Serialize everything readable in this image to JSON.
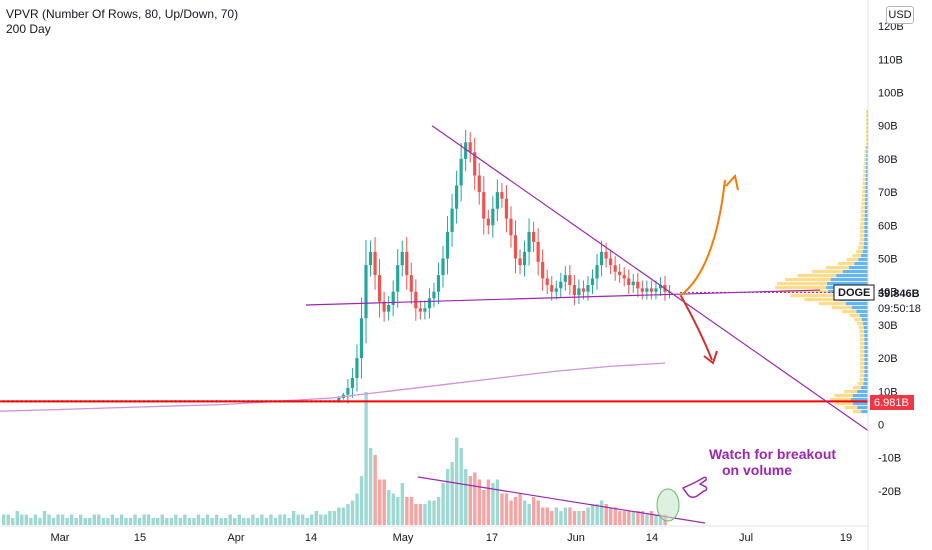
{
  "legend": {
    "indicator": "VPVR (Number Of Rows, 80, Up/Down, 70)",
    "ma": "200 Day"
  },
  "currency_button": "USD",
  "price_tag": {
    "symbol": "DOGE",
    "value": "39.846B",
    "countdown": "09:50:18",
    "color": "#131722"
  },
  "level_tag": {
    "value": "6.981B",
    "color": "#f23645"
  },
  "annotation": {
    "line1": "Watch for breakout",
    "line2": "on volume",
    "color": "#9c27b0"
  },
  "colors": {
    "up": "#26a69a",
    "down": "#ef5350",
    "vol_up": "#9ed8d2",
    "vol_down": "#f5a3a3",
    "ma": "#ce93d8",
    "trend": "#9c27b0",
    "support": "#ff0000",
    "bull_arrow": "#f57c00",
    "bear_arrow": "#d32f2f",
    "vp_up": "#2196f3",
    "vp_down": "#fbc02d"
  },
  "chart_data": {
    "type": "candlestick",
    "yaxis": {
      "ticks": [
        "120B",
        "110B",
        "100B",
        "90B",
        "80B",
        "70B",
        "60B",
        "50B",
        "40B",
        "30B",
        "20B",
        "10B",
        "0",
        "-10B",
        "-20B"
      ],
      "values": [
        120,
        110,
        100,
        90,
        80,
        70,
        60,
        50,
        40,
        30,
        20,
        10,
        0,
        -10,
        -20
      ]
    },
    "xaxis": {
      "ticks": [
        "Mar",
        "15",
        "Apr",
        "14",
        "May",
        "17",
        "Jun",
        "14",
        "Jul",
        "19"
      ]
    },
    "series": [
      {
        "name": "DOGE",
        "values": [
          7,
          7,
          7,
          7,
          7,
          7,
          7,
          7,
          7,
          7,
          7,
          7,
          7,
          7,
          7,
          7,
          7,
          7,
          7,
          7,
          7,
          7,
          7,
          7,
          7,
          7,
          7,
          7,
          7,
          7,
          7,
          7,
          7,
          7,
          7,
          7,
          7,
          7,
          7,
          7,
          7,
          7,
          7,
          7,
          7,
          7,
          7,
          7,
          7,
          7,
          7,
          7,
          7,
          7,
          7,
          7,
          7,
          7,
          7,
          7,
          7,
          7,
          7,
          7,
          7,
          7,
          7,
          7,
          7,
          7,
          7,
          7,
          7,
          7,
          8,
          9,
          11,
          14,
          20,
          32,
          48,
          52,
          45,
          37,
          34,
          36,
          40,
          48,
          52,
          45,
          40,
          35,
          34,
          35,
          38,
          40,
          45,
          50,
          58,
          65,
          72,
          80,
          85,
          82,
          75,
          70,
          62,
          60,
          65,
          70,
          68,
          62,
          57,
          50,
          48,
          52,
          58,
          55,
          49,
          44,
          42,
          40,
          41,
          43,
          45,
          42,
          39,
          41,
          40,
          42,
          44,
          48,
          52,
          50,
          48,
          46,
          45,
          44,
          42,
          43,
          41,
          40,
          41,
          40,
          41,
          42,
          40,
          40
        ]
      }
    ],
    "ma200": [
      4,
      4.5,
      5,
      5.5,
      6,
      7,
      8,
      10,
      12,
      14,
      16,
      17.5,
      18.5
    ],
    "volume": [
      3,
      3,
      2,
      4,
      3,
      3,
      2,
      3,
      2,
      4,
      3,
      2,
      3,
      3,
      2,
      3,
      2,
      3,
      2,
      2,
      3,
      3,
      2,
      2,
      3,
      2,
      3,
      2,
      2,
      3,
      2,
      3,
      3,
      2,
      2,
      3,
      2,
      2,
      3,
      2,
      3,
      2,
      2,
      3,
      2,
      3,
      2,
      3,
      2,
      2,
      3,
      2,
      3,
      2,
      2,
      3,
      2,
      3,
      2,
      3,
      2,
      3,
      3,
      2,
      4,
      3,
      3,
      2,
      3,
      4,
      3,
      3,
      4,
      4,
      5,
      5,
      6,
      7,
      9,
      14,
      38,
      22,
      20,
      13,
      13,
      10,
      9,
      8,
      12,
      8,
      8,
      6,
      6,
      6,
      7,
      7,
      8,
      12,
      16,
      18,
      25,
      22,
      16,
      14,
      15,
      13,
      10,
      13,
      12,
      13,
      9,
      9,
      7,
      8,
      9,
      7,
      6,
      8,
      7,
      5,
      5,
      4,
      5,
      4,
      5,
      5,
      4,
      4,
      4,
      5,
      6,
      6,
      7,
      6,
      5,
      5,
      4,
      4,
      4,
      4,
      4,
      4,
      3,
      4,
      3,
      3,
      3
    ]
  }
}
